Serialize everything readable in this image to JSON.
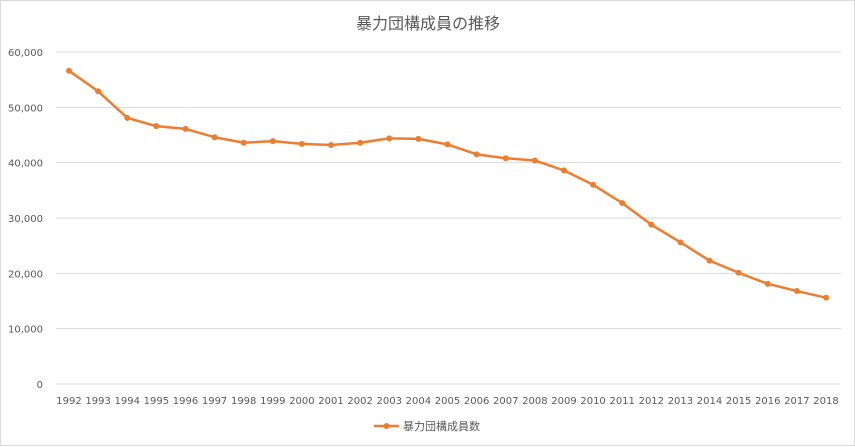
{
  "chart_data": {
    "type": "line",
    "title": "暴力団構成員の推移",
    "xlabel": "",
    "ylabel": "",
    "categories": [
      "1992",
      "1993",
      "1994",
      "1995",
      "1996",
      "1997",
      "1998",
      "1999",
      "2000",
      "2001",
      "2002",
      "2003",
      "2004",
      "2005",
      "2006",
      "2007",
      "2008",
      "2009",
      "2010",
      "2011",
      "2012",
      "2013",
      "2014",
      "2015",
      "2016",
      "2017",
      "2018"
    ],
    "series": [
      {
        "name": "暴力団構成員数",
        "color": "#ed7d31",
        "values": [
          56600,
          52900,
          48100,
          46600,
          46100,
          44600,
          43600,
          43900,
          43400,
          43200,
          43600,
          44400,
          44300,
          43300,
          41500,
          40800,
          40400,
          38600,
          36000,
          32700,
          28800,
          25600,
          22300,
          20100,
          18100,
          16800,
          15600
        ]
      }
    ],
    "ylim": [
      0,
      60000
    ],
    "yticks": [
      0,
      10000,
      20000,
      30000,
      40000,
      50000,
      60000
    ],
    "ytick_labels": [
      "0",
      "10,000",
      "20,000",
      "30,000",
      "40,000",
      "50,000",
      "60,000"
    ],
    "grid": true,
    "legend_position": "bottom"
  }
}
